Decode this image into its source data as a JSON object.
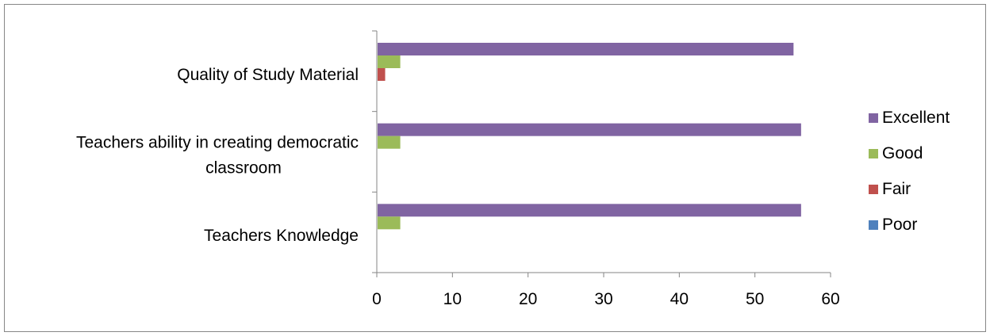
{
  "chart_data": {
    "type": "bar",
    "orientation": "horizontal",
    "title": "",
    "xlabel": "",
    "ylabel": "",
    "xlim": [
      0,
      60
    ],
    "xticks": [
      0,
      10,
      20,
      30,
      40,
      50,
      60
    ],
    "grid": false,
    "legend_position": "right",
    "categories": [
      {
        "lines": [
          "Quality of Study Material"
        ]
      },
      {
        "lines": [
          "Teachers ability in creating democratic",
          "classroom"
        ]
      },
      {
        "lines": [
          "Teachers Knowledge"
        ]
      }
    ],
    "series": [
      {
        "name": "Excellent",
        "color": "#8064A2",
        "values": [
          55,
          56,
          56
        ]
      },
      {
        "name": "Good",
        "color": "#9BBB59",
        "values": [
          3,
          3,
          3
        ]
      },
      {
        "name": "Fair",
        "color": "#C0504D",
        "values": [
          1,
          0,
          0
        ]
      },
      {
        "name": "Poor",
        "color": "#4F81BD",
        "values": [
          0,
          0,
          0
        ]
      }
    ]
  }
}
